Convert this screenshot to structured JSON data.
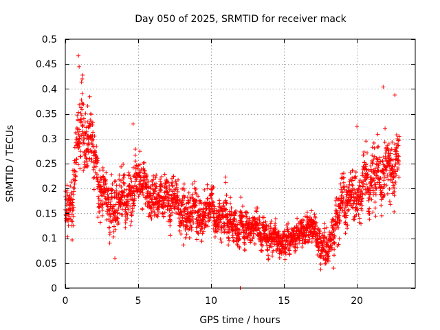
{
  "chart_data": {
    "type": "scatter",
    "title": "Day 050 of 2025, SRMTID for receiver mack",
    "xlabel": "GPS time / hours",
    "ylabel": "SRMTID / TECUs",
    "xlim": [
      0,
      24
    ],
    "ylim": [
      0,
      0.5
    ],
    "xticks": [
      0,
      5,
      10,
      15,
      20
    ],
    "xtick_labels": [
      "0",
      "5",
      "10",
      "15",
      "20"
    ],
    "yticks": [
      0,
      0.05,
      0.1,
      0.15,
      0.2,
      0.25,
      0.3,
      0.35,
      0.4,
      0.45,
      0.5
    ],
    "ytick_labels": [
      "0",
      "0.05",
      "0.1",
      "0.15",
      "0.2",
      "0.25",
      "0.3",
      "0.35",
      "0.4",
      "0.45",
      "0.5"
    ],
    "grid": true,
    "marker": "+",
    "color": "#ff0000",
    "series": [
      {
        "name": "SRMTID",
        "trend": {
          "x": [
            0,
            0.5,
            0.9,
            1.3,
            1.7,
            2.2,
            3.0,
            4.0,
            5.0,
            6.0,
            7.0,
            8.0,
            9.0,
            10.0,
            11.0,
            12.0,
            13.0,
            14.0,
            15.0,
            16.0,
            17.0,
            18.0,
            18.5,
            19.0,
            20.0,
            21.0,
            22.0,
            22.8
          ],
          "y": [
            0.18,
            0.17,
            0.3,
            0.3,
            0.27,
            0.22,
            0.17,
            0.17,
            0.2,
            0.19,
            0.18,
            0.16,
            0.15,
            0.15,
            0.13,
            0.12,
            0.12,
            0.1,
            0.09,
            0.11,
            0.11,
            0.08,
            0.14,
            0.17,
            0.2,
            0.22,
            0.23,
            0.28
          ]
        },
        "spread": {
          "x": [
            0,
            1,
            2,
            4,
            8,
            12,
            15,
            18,
            20,
            22.8
          ],
          "y": [
            0.05,
            0.08,
            0.06,
            0.05,
            0.05,
            0.04,
            0.03,
            0.04,
            0.06,
            0.07
          ]
        },
        "x_start": 0.0,
        "x_end": 22.9,
        "sample_interval_hours": 0.0083,
        "notable_points": [
          {
            "x": 0.9,
            "y": 0.467
          },
          {
            "x": 0.95,
            "y": 0.445
          },
          {
            "x": 1.15,
            "y": 0.42
          },
          {
            "x": 21.8,
            "y": 0.404
          },
          {
            "x": 22.6,
            "y": 0.388
          },
          {
            "x": 12.0,
            "y": 0.0
          },
          {
            "x": 3.4,
            "y": 0.06
          },
          {
            "x": 18.4,
            "y": 0.04
          },
          {
            "x": 4.65,
            "y": 0.33
          },
          {
            "x": 20.0,
            "y": 0.325
          }
        ]
      }
    ]
  }
}
